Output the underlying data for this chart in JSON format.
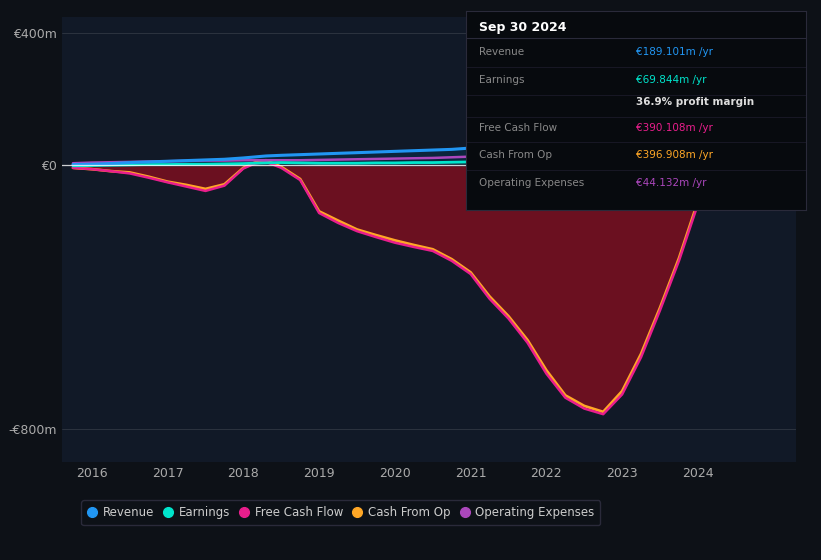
{
  "background_color": "#0d1117",
  "plot_bg_color": "#111927",
  "ylim": [
    -900,
    450
  ],
  "yticks": [
    -800,
    0,
    400
  ],
  "ytick_labels": [
    "-€800m",
    "€0",
    "€400m"
  ],
  "xlim": [
    2015.6,
    2025.3
  ],
  "xticks": [
    2016,
    2017,
    2018,
    2019,
    2020,
    2021,
    2022,
    2023,
    2024
  ],
  "colors": {
    "revenue": "#2196f3",
    "earnings": "#00e5cc",
    "free_cash_flow": "#e91e8c",
    "cash_from_op": "#ffa726",
    "operating_expenses": "#ab47bc"
  },
  "legend": [
    {
      "label": "Revenue",
      "color": "#2196f3"
    },
    {
      "label": "Earnings",
      "color": "#00e5cc"
    },
    {
      "label": "Free Cash Flow",
      "color": "#e91e8c"
    },
    {
      "label": "Cash From Op",
      "color": "#ffa726"
    },
    {
      "label": "Operating Expenses",
      "color": "#ab47bc"
    }
  ],
  "x": [
    2015.75,
    2016.0,
    2016.25,
    2016.5,
    2016.75,
    2017.0,
    2017.25,
    2017.5,
    2017.75,
    2018.0,
    2018.15,
    2018.3,
    2018.5,
    2018.75,
    2019.0,
    2019.25,
    2019.5,
    2019.75,
    2020.0,
    2020.25,
    2020.5,
    2020.75,
    2021.0,
    2021.25,
    2021.5,
    2021.75,
    2022.0,
    2022.25,
    2022.5,
    2022.75,
    2023.0,
    2023.25,
    2023.5,
    2023.75,
    2024.0,
    2024.25,
    2024.5,
    2024.75,
    2025.1
  ],
  "revenue": [
    2,
    3,
    5,
    8,
    10,
    12,
    14,
    16,
    18,
    22,
    25,
    28,
    30,
    32,
    34,
    36,
    38,
    40,
    42,
    44,
    46,
    48,
    52,
    60,
    70,
    85,
    105,
    130,
    148,
    158,
    175,
    198,
    220,
    238,
    252,
    265,
    280,
    310,
    430
  ],
  "earnings": [
    -2,
    -1,
    0,
    1,
    2,
    2,
    3,
    3,
    4,
    5,
    6,
    7,
    8,
    7,
    6,
    6,
    6,
    7,
    7,
    8,
    8,
    9,
    10,
    14,
    20,
    30,
    45,
    58,
    65,
    70,
    78,
    88,
    100,
    112,
    120,
    128,
    148,
    175,
    195
  ],
  "free_cash_flow": [
    -8,
    -12,
    -18,
    -25,
    -38,
    -52,
    -65,
    -78,
    -62,
    -10,
    5,
    10,
    -8,
    -45,
    -145,
    -175,
    -200,
    -218,
    -235,
    -248,
    -260,
    -290,
    -330,
    -405,
    -465,
    -538,
    -632,
    -705,
    -738,
    -755,
    -695,
    -582,
    -440,
    -290,
    -118,
    -35,
    85,
    340,
    375
  ],
  "cash_from_op": [
    -8,
    -12,
    -18,
    -22,
    -35,
    -50,
    -60,
    -72,
    -58,
    -8,
    8,
    15,
    -5,
    -42,
    -140,
    -168,
    -195,
    -212,
    -228,
    -242,
    -255,
    -285,
    -325,
    -398,
    -458,
    -530,
    -622,
    -698,
    -730,
    -748,
    -685,
    -572,
    -432,
    -282,
    -110,
    -28,
    92,
    350,
    385
  ],
  "operating_expenses": [
    6,
    8,
    9,
    10,
    11,
    12,
    13,
    14,
    14,
    15,
    15,
    15,
    15,
    15,
    16,
    17,
    18,
    19,
    20,
    21,
    22,
    24,
    26,
    28,
    30,
    33,
    36,
    39,
    41,
    42,
    43,
    44,
    45,
    46,
    46,
    47,
    47,
    48,
    49
  ],
  "info_box": {
    "title": "Sep 30 2024",
    "rows": [
      {
        "label": "Revenue",
        "value": "€189.101m /yr",
        "lcolor": "#888888",
        "vcolor": "#2196f3"
      },
      {
        "label": "Earnings",
        "value": "€69.844m /yr",
        "lcolor": "#888888",
        "vcolor": "#00e5cc"
      },
      {
        "label": "",
        "value": "36.9% profit margin",
        "lcolor": "#888888",
        "vcolor": "#dddddd"
      },
      {
        "label": "Free Cash Flow",
        "value": "€390.108m /yr",
        "lcolor": "#888888",
        "vcolor": "#e91e8c"
      },
      {
        "label": "Cash From Op",
        "value": "€396.908m /yr",
        "lcolor": "#888888",
        "vcolor": "#ffa726"
      },
      {
        "label": "Operating Expenses",
        "value": "€44.132m /yr",
        "lcolor": "#888888",
        "vcolor": "#ab47bc"
      }
    ]
  }
}
